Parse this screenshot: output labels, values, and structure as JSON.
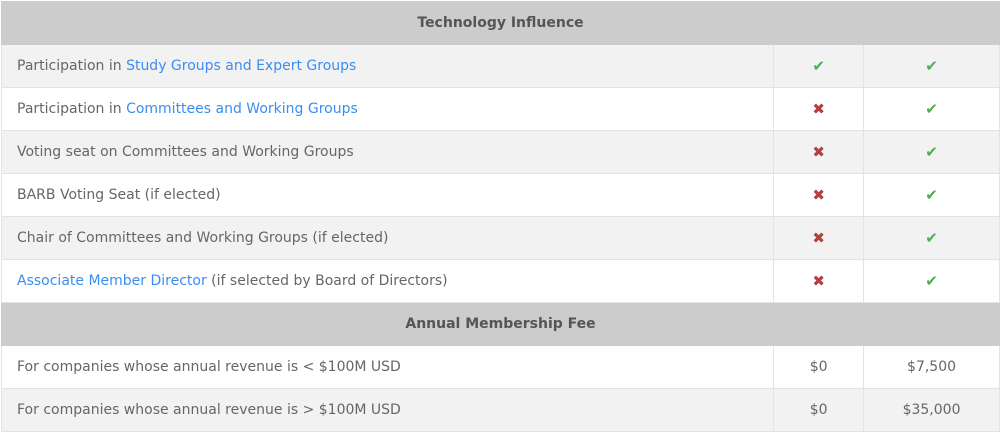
{
  "sections": [
    {
      "title": "Technology Influence"
    },
    {
      "title": "Annual Membership Fee"
    }
  ],
  "influence_rows": [
    {
      "prefix": "Participation in ",
      "link": "Study Groups and Expert Groups",
      "suffix": "",
      "col1": "check",
      "col2": "check"
    },
    {
      "prefix": "Participation in ",
      "link": "Committees and Working Groups",
      "suffix": "",
      "col1": "cross",
      "col2": "check"
    },
    {
      "prefix": "Voting seat on Committees and Working Groups",
      "link": "",
      "suffix": "",
      "col1": "cross",
      "col2": "check"
    },
    {
      "prefix": "BARB Voting Seat (if elected)",
      "link": "",
      "suffix": "",
      "col1": "cross",
      "col2": "check"
    },
    {
      "prefix": "Chair of Committees and Working Groups (if elected)",
      "link": "",
      "suffix": "",
      "col1": "cross",
      "col2": "check"
    },
    {
      "prefix": "",
      "link": "Associate Member Director",
      "suffix": " (if selected by Board of Directors)",
      "col1": "cross",
      "col2": "check"
    }
  ],
  "fee_rows": [
    {
      "label": "For companies whose annual revenue is < $100M USD",
      "col1": "$0",
      "col2": "$7,500"
    },
    {
      "label": "For companies whose annual revenue is > $100M USD",
      "col1": "$0",
      "col2": "$35,000"
    }
  ],
  "colors": {
    "check": "#4caf50",
    "cross": "#b24040",
    "link": "#3a8ef0",
    "section_bg": "#cccccc"
  }
}
